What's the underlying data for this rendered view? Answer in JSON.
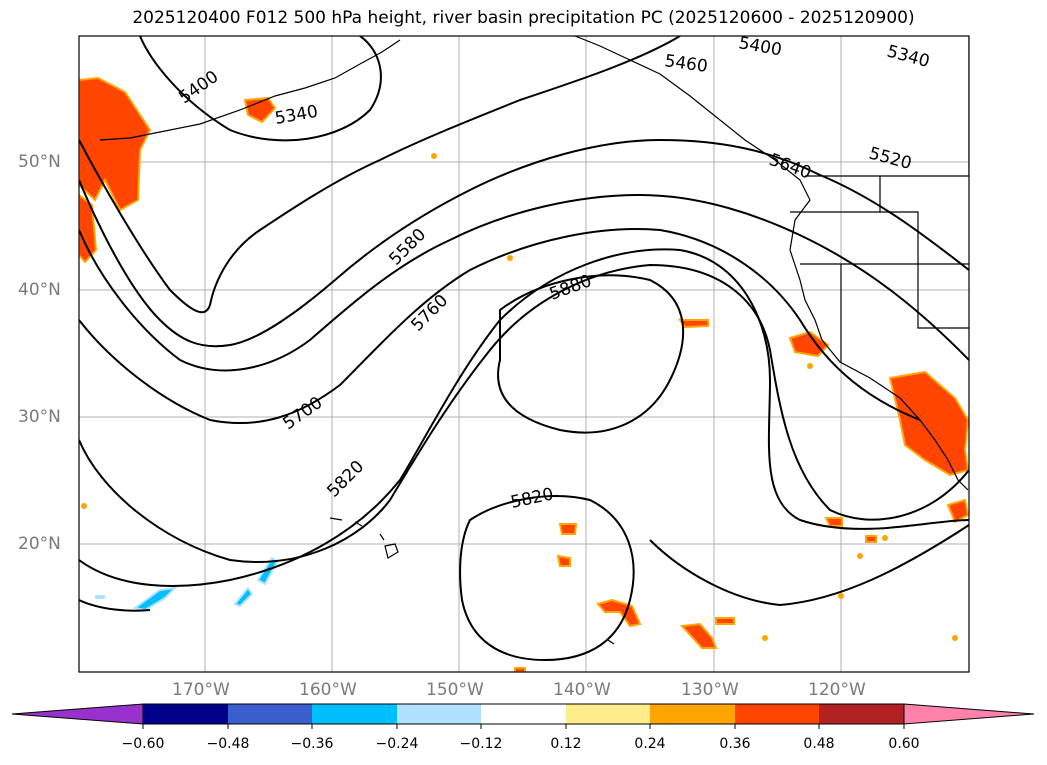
{
  "title": "2025120400 F012 500 hPa height, river basin precipitation PC (2025120600 - 2025120900)",
  "map": {
    "lat_labels": [
      "50°N",
      "40°N",
      "30°N",
      "20°N"
    ],
    "lon_labels": [
      "170°W",
      "160°W",
      "150°W",
      "140°W",
      "130°W",
      "120°W"
    ],
    "contour_labels": [
      "5400",
      "5340",
      "5460",
      "5400",
      "5340",
      "5520",
      "5640",
      "5580",
      "5760",
      "5880",
      "5700",
      "5820",
      "5820"
    ]
  },
  "colorbar": {
    "colors": [
      "#9932cc",
      "#00008b",
      "#3a5fcd",
      "#00bfff",
      "#b0e2ff",
      "#ffffff",
      "#ffec8b",
      "#ffa500",
      "#ff4500",
      "#b22222",
      "#ff82ab"
    ],
    "ticks": [
      "−0.60",
      "−0.48",
      "−0.36",
      "−0.24",
      "−0.12",
      "0.12",
      "0.24",
      "0.36",
      "0.48",
      "0.60"
    ]
  }
}
